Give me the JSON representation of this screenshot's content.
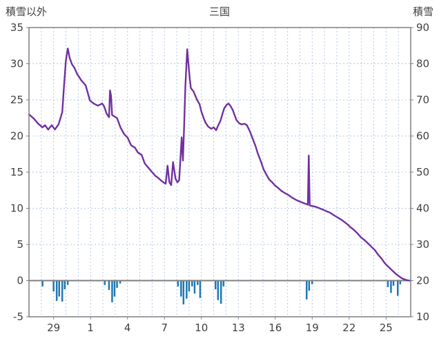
{
  "header": {
    "left_axis_title": "積雪以外",
    "chart_title": "三国",
    "right_axis_title": "積雪"
  },
  "colors": {
    "line": "#7030a0",
    "bars": "#1f77b4",
    "grid": "#b4c7e7",
    "frame": "#7f7f7f",
    "zero_line": "#7f7f7f",
    "text": "#404040"
  },
  "chart_data": {
    "type": "line",
    "title": "三国",
    "left_axis": {
      "title": "積雪以外",
      "range": [
        -5,
        35
      ],
      "ticks": [
        35,
        30,
        25,
        20,
        15,
        10,
        5,
        0,
        -5
      ]
    },
    "right_axis": {
      "title": "積雪",
      "range": [
        10,
        90
      ],
      "ticks": [
        90,
        80,
        70,
        60,
        50,
        40,
        30,
        20,
        10
      ]
    },
    "x_axis": {
      "domain": [
        0,
        31
      ],
      "ticks": [
        {
          "pos": 2,
          "label": "29"
        },
        {
          "pos": 5,
          "label": "1"
        },
        {
          "pos": 8,
          "label": "4"
        },
        {
          "pos": 11,
          "label": "7"
        },
        {
          "pos": 14,
          "label": "10"
        },
        {
          "pos": 17,
          "label": "13"
        },
        {
          "pos": 20,
          "label": "16"
        },
        {
          "pos": 23,
          "label": "19"
        },
        {
          "pos": 26,
          "label": "22"
        },
        {
          "pos": 29,
          "label": "25"
        }
      ],
      "gridlines_every": 1
    },
    "series": [
      {
        "name": "積雪",
        "type": "line",
        "scale": "left",
        "color": "#7030a0",
        "points": [
          [
            0,
            23.0
          ],
          [
            0.4,
            22.4
          ],
          [
            0.75,
            21.7
          ],
          [
            1.1,
            21.2
          ],
          [
            1.3,
            21.5
          ],
          [
            1.55,
            20.9
          ],
          [
            1.85,
            21.5
          ],
          [
            2.1,
            20.9
          ],
          [
            2.4,
            21.6
          ],
          [
            2.7,
            23.3
          ],
          [
            2.85,
            27.0
          ],
          [
            3.0,
            30.5
          ],
          [
            3.15,
            32.1
          ],
          [
            3.3,
            30.8
          ],
          [
            3.5,
            29.9
          ],
          [
            3.7,
            29.4
          ],
          [
            3.9,
            28.6
          ],
          [
            4.25,
            27.7
          ],
          [
            4.6,
            27.0
          ],
          [
            4.95,
            24.9
          ],
          [
            5.25,
            24.5
          ],
          [
            5.6,
            24.2
          ],
          [
            5.95,
            24.5
          ],
          [
            6.1,
            24.1
          ],
          [
            6.3,
            23.1
          ],
          [
            6.5,
            22.6
          ],
          [
            6.58,
            26.3
          ],
          [
            6.66,
            25.6
          ],
          [
            6.75,
            22.9
          ],
          [
            7.15,
            22.5
          ],
          [
            7.45,
            21.1
          ],
          [
            7.75,
            20.2
          ],
          [
            8.0,
            19.8
          ],
          [
            8.3,
            18.7
          ],
          [
            8.6,
            18.4
          ],
          [
            8.85,
            17.7
          ],
          [
            9.15,
            17.4
          ],
          [
            9.4,
            16.2
          ],
          [
            9.7,
            15.6
          ],
          [
            10.0,
            15.0
          ],
          [
            10.25,
            14.5
          ],
          [
            10.5,
            14.2
          ],
          [
            10.75,
            13.8
          ],
          [
            11.0,
            13.5
          ],
          [
            11.1,
            13.4
          ],
          [
            11.25,
            15.9
          ],
          [
            11.4,
            13.6
          ],
          [
            11.55,
            13.2
          ],
          [
            11.7,
            16.4
          ],
          [
            11.9,
            14.1
          ],
          [
            12.05,
            13.6
          ],
          [
            12.2,
            13.9
          ],
          [
            12.4,
            19.8
          ],
          [
            12.5,
            16.6
          ],
          [
            12.6,
            21.5
          ],
          [
            12.7,
            27.0
          ],
          [
            12.85,
            32.0
          ],
          [
            12.95,
            30.0
          ],
          [
            13.05,
            28.0
          ],
          [
            13.15,
            26.6
          ],
          [
            13.35,
            26.2
          ],
          [
            13.5,
            25.6
          ],
          [
            13.65,
            25.0
          ],
          [
            13.85,
            24.4
          ],
          [
            14.0,
            23.4
          ],
          [
            14.2,
            22.4
          ],
          [
            14.35,
            21.8
          ],
          [
            14.55,
            21.3
          ],
          [
            14.8,
            21.0
          ],
          [
            15.0,
            21.2
          ],
          [
            15.2,
            20.8
          ],
          [
            15.35,
            21.4
          ],
          [
            15.55,
            22.1
          ],
          [
            15.7,
            23.0
          ],
          [
            15.85,
            23.8
          ],
          [
            16.05,
            24.3
          ],
          [
            16.2,
            24.5
          ],
          [
            16.35,
            24.2
          ],
          [
            16.55,
            23.6
          ],
          [
            16.7,
            22.9
          ],
          [
            16.85,
            22.2
          ],
          [
            17.05,
            21.8
          ],
          [
            17.25,
            21.6
          ],
          [
            17.5,
            21.7
          ],
          [
            17.7,
            21.5
          ],
          [
            17.95,
            20.6
          ],
          [
            18.15,
            19.7
          ],
          [
            18.4,
            18.6
          ],
          [
            18.6,
            17.5
          ],
          [
            18.85,
            16.4
          ],
          [
            19.05,
            15.4
          ],
          [
            19.3,
            14.6
          ],
          [
            19.5,
            14.0
          ],
          [
            19.75,
            13.6
          ],
          [
            19.95,
            13.2
          ],
          [
            20.25,
            12.8
          ],
          [
            20.5,
            12.4
          ],
          [
            20.8,
            12.1
          ],
          [
            21.1,
            11.8
          ],
          [
            21.35,
            11.5
          ],
          [
            21.65,
            11.2
          ],
          [
            21.9,
            11.0
          ],
          [
            22.2,
            10.8
          ],
          [
            22.5,
            10.6
          ],
          [
            22.65,
            10.5
          ],
          [
            22.72,
            17.3
          ],
          [
            22.8,
            10.4
          ],
          [
            23.05,
            10.3
          ],
          [
            23.3,
            10.2
          ],
          [
            23.6,
            10.0
          ],
          [
            23.9,
            9.8
          ],
          [
            24.15,
            9.6
          ],
          [
            24.45,
            9.4
          ],
          [
            24.7,
            9.1
          ],
          [
            25.0,
            8.8
          ],
          [
            25.3,
            8.5
          ],
          [
            25.55,
            8.2
          ],
          [
            25.85,
            7.8
          ],
          [
            26.1,
            7.4
          ],
          [
            26.4,
            7.0
          ],
          [
            26.7,
            6.5
          ],
          [
            26.95,
            6.0
          ],
          [
            27.25,
            5.6
          ],
          [
            27.5,
            5.2
          ],
          [
            27.8,
            4.7
          ],
          [
            28.1,
            4.2
          ],
          [
            28.35,
            3.6
          ],
          [
            28.65,
            3.0
          ],
          [
            28.9,
            2.4
          ],
          [
            29.2,
            1.9
          ],
          [
            29.5,
            1.4
          ],
          [
            29.75,
            1.0
          ],
          [
            30.05,
            0.6
          ],
          [
            30.3,
            0.3
          ],
          [
            30.6,
            0.1
          ],
          [
            30.9,
            0.0
          ]
        ]
      },
      {
        "name": "積雪以外",
        "type": "bar",
        "scale": "left",
        "color": "#1f77b4",
        "points": [
          [
            1.1,
            -0.8
          ],
          [
            2.0,
            -1.5
          ],
          [
            2.25,
            -2.8
          ],
          [
            2.45,
            -2.2
          ],
          [
            2.7,
            -2.9
          ],
          [
            2.9,
            -1.2
          ],
          [
            3.15,
            -0.6
          ],
          [
            6.15,
            -0.6
          ],
          [
            6.5,
            -1.3
          ],
          [
            6.75,
            -3.0
          ],
          [
            6.95,
            -2.2
          ],
          [
            7.15,
            -1.0
          ],
          [
            7.4,
            -0.4
          ],
          [
            12.1,
            -0.8
          ],
          [
            12.35,
            -2.2
          ],
          [
            12.55,
            -3.3
          ],
          [
            12.8,
            -2.5
          ],
          [
            13.0,
            -1.5
          ],
          [
            13.25,
            -0.8
          ],
          [
            13.45,
            -1.8
          ],
          [
            13.7,
            -0.6
          ],
          [
            13.9,
            -2.4
          ],
          [
            15.15,
            -1.2
          ],
          [
            15.35,
            -2.7
          ],
          [
            15.6,
            -3.2
          ],
          [
            15.8,
            -0.8
          ],
          [
            22.55,
            -2.6
          ],
          [
            22.75,
            -1.4
          ],
          [
            23.0,
            -0.5
          ],
          [
            29.15,
            -0.9
          ],
          [
            29.4,
            -1.7
          ],
          [
            29.6,
            -0.7
          ],
          [
            29.95,
            -2.1
          ],
          [
            30.15,
            -0.5
          ]
        ]
      }
    ],
    "grid": true,
    "legend": "none"
  }
}
